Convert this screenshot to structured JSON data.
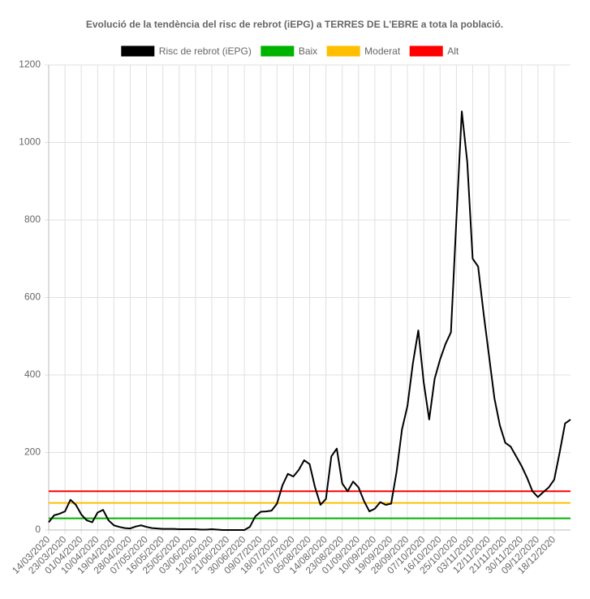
{
  "chart_data": {
    "type": "line",
    "title": "Evolució de la tendència del risc de rebrot (iEPG) a TERRES DE L'EBRE a tota la població.",
    "categories": [
      "14/03/2020",
      null,
      null,
      "23/03/2020",
      null,
      null,
      "01/04/2020",
      null,
      null,
      "10/04/2020",
      null,
      null,
      "19/04/2020",
      null,
      null,
      "28/04/2020",
      null,
      null,
      "07/05/2020",
      null,
      null,
      "16/05/2020",
      null,
      null,
      "25/05/2020",
      null,
      null,
      "03/06/2020",
      null,
      null,
      "12/06/2020",
      null,
      null,
      "21/06/2020",
      null,
      null,
      "30/06/2020",
      null,
      null,
      "09/07/2020",
      null,
      null,
      "18/07/2020",
      null,
      null,
      "27/07/2020",
      null,
      null,
      "05/08/2020",
      null,
      null,
      "14/08/2020",
      null,
      null,
      "23/08/2020",
      null,
      null,
      "01/09/2020",
      null,
      null,
      "10/09/2020",
      null,
      null,
      "19/09/2020",
      null,
      null,
      "28/09/2020",
      null,
      null,
      "07/10/2020",
      null,
      null,
      "16/10/2020",
      null,
      null,
      "25/10/2020",
      null,
      null,
      "03/11/2020",
      null,
      null,
      "12/11/2020",
      null,
      null,
      "21/11/2020",
      null,
      null,
      "30/11/2020",
      null,
      null,
      "09/12/2020",
      null,
      null,
      "18/12/2020",
      null,
      null,
      null
    ],
    "series": [
      {
        "name": "Risc de rebrot (iEPG)",
        "color": "#000000",
        "values": [
          20,
          38,
          42,
          48,
          78,
          65,
          40,
          25,
          20,
          45,
          52,
          25,
          12,
          8,
          5,
          4,
          9,
          12,
          8,
          5,
          4,
          3,
          3,
          3,
          2,
          2,
          2,
          2,
          1,
          1,
          2,
          1,
          0,
          0,
          0,
          0,
          0,
          8,
          35,
          47,
          48,
          50,
          68,
          115,
          145,
          138,
          155,
          180,
          170,
          110,
          65,
          80,
          190,
          210,
          120,
          100,
          125,
          110,
          75,
          48,
          55,
          72,
          65,
          68,
          150,
          260,
          320,
          430,
          515,
          380,
          285,
          390,
          440,
          480,
          510,
          800,
          1080,
          950,
          700,
          680,
          560,
          450,
          340,
          270,
          225,
          215,
          190,
          165,
          135,
          100,
          85,
          98,
          110,
          130,
          200,
          275,
          285
        ]
      }
    ],
    "thresholds": [
      {
        "name": "Baix",
        "color": "#00b300",
        "value": 30
      },
      {
        "name": "Moderat",
        "color": "#ffbf00",
        "value": 70
      },
      {
        "name": "Alt",
        "color": "#ff0000",
        "value": 100
      }
    ],
    "ylim": [
      0,
      1200
    ],
    "yticks": [
      0,
      200,
      400,
      600,
      800,
      1000,
      1200
    ],
    "grid": true
  }
}
